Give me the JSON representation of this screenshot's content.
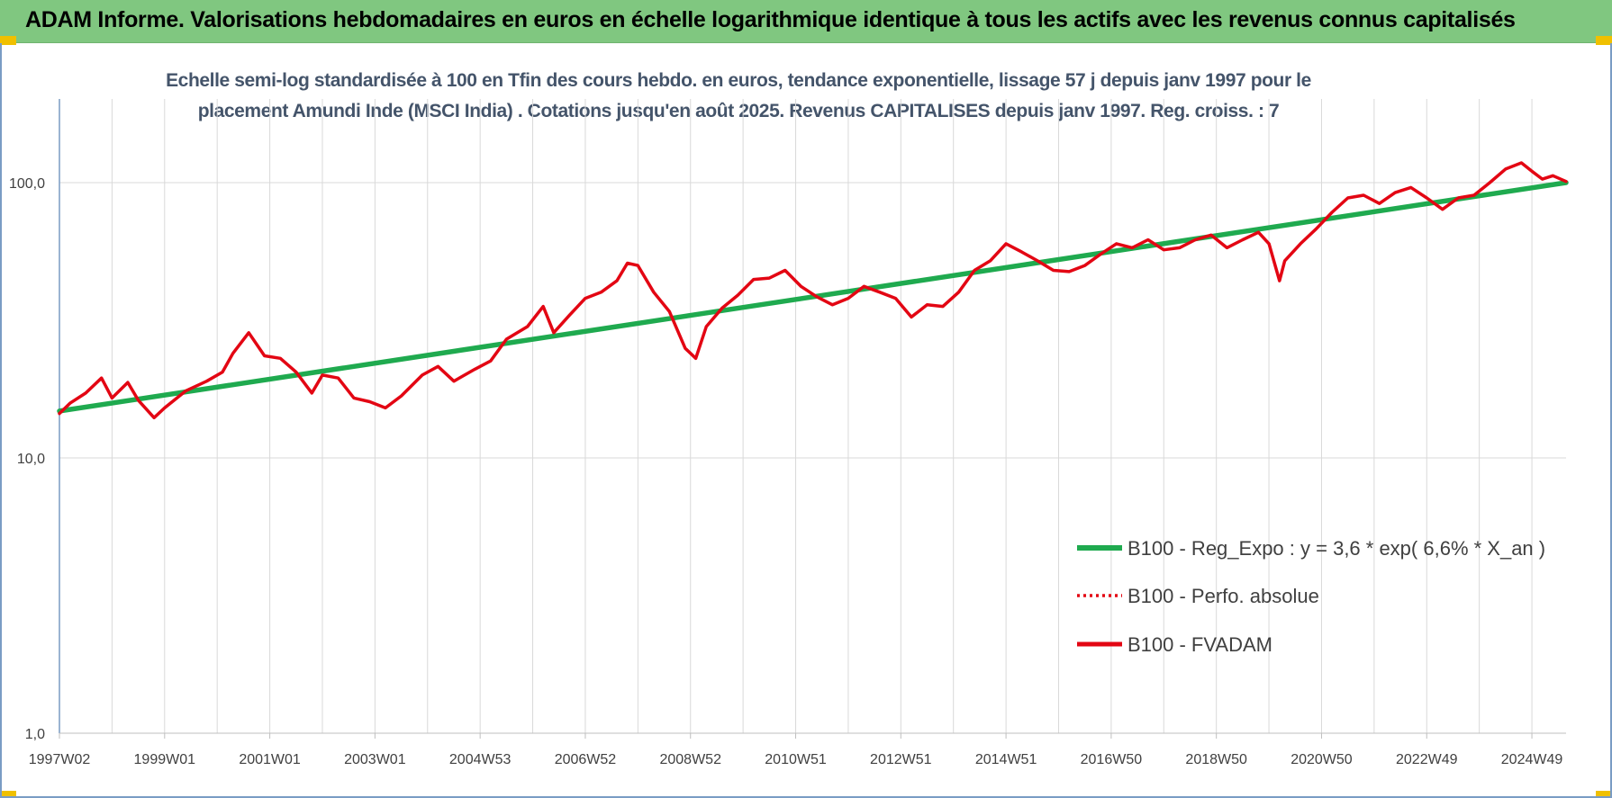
{
  "banner": {
    "title": "ADAM Informe. Valorisations hebdomadaires en euros en échelle logarithmique identique à tous les actifs avec les revenus connus capitalisés"
  },
  "colors": {
    "banner_bg": "#80c780",
    "regression": "#1faa4f",
    "fvadam": "#e30613",
    "perfo": "#e30613",
    "grid": "#d9d9d9",
    "axis": "#7a9cc4"
  },
  "chart_data": {
    "type": "line",
    "title_line1": "Echelle semi-log standardisée à 100 en Tfin des cours hebdo. en euros, tendance exponentielle, lissage 57 j depuis janv 1997 pour le",
    "title_line2": "placement Amundi Inde (MSCI India) . Cotations jusqu'en août 2025. Revenus CAPITALISES depuis janv 1997. Reg. croiss. : 7",
    "y_scale": "log",
    "ylim": [
      1,
      200
    ],
    "y_ticks": [
      {
        "value": 1,
        "label": "1,0"
      },
      {
        "value": 10,
        "label": "10,0"
      },
      {
        "value": 100,
        "label": "100,0"
      }
    ],
    "xlim": [
      1997.0,
      2025.65
    ],
    "x_ticks": [
      {
        "value": 1997.0,
        "label": "1997W02"
      },
      {
        "value": 1999.0,
        "label": "1999W01"
      },
      {
        "value": 2001.0,
        "label": "2001W01"
      },
      {
        "value": 2003.0,
        "label": "2003W01"
      },
      {
        "value": 2005.0,
        "label": "2004W53"
      },
      {
        "value": 2007.0,
        "label": "2006W52"
      },
      {
        "value": 2009.0,
        "label": "2008W52"
      },
      {
        "value": 2011.0,
        "label": "2010W51"
      },
      {
        "value": 2013.0,
        "label": "2012W51"
      },
      {
        "value": 2015.0,
        "label": "2014W51"
      },
      {
        "value": 2017.0,
        "label": "2016W50"
      },
      {
        "value": 2019.0,
        "label": "2018W50"
      },
      {
        "value": 2021.0,
        "label": "2020W50"
      },
      {
        "value": 2023.0,
        "label": "2022W49"
      },
      {
        "value": 2025.0,
        "label": "2024W49"
      }
    ],
    "grid": true,
    "legend_position": "bottom-right",
    "series": [
      {
        "name": "B100 - Reg_Expo : y = 3,6 * exp( 6,6% *  X_an )",
        "style": "solid-thick",
        "color": "#1faa4f",
        "x": [
          1997.0,
          2025.65
        ],
        "values": [
          14.8,
          100.0
        ]
      },
      {
        "name": "B100 - Perfo. absolue",
        "style": "dotted",
        "color": "#e30613",
        "x": [],
        "values": []
      },
      {
        "name": "B100 - FVADAM",
        "style": "solid",
        "color": "#e30613",
        "x": [
          1997.0,
          1997.2,
          1997.5,
          1997.8,
          1998.0,
          1998.3,
          1998.5,
          1998.8,
          1999.0,
          1999.4,
          1999.8,
          2000.1,
          2000.3,
          2000.6,
          2000.9,
          2001.2,
          2001.5,
          2001.8,
          2002.0,
          2002.3,
          2002.6,
          2002.9,
          2003.2,
          2003.5,
          2003.9,
          2004.2,
          2004.5,
          2004.9,
          2005.2,
          2005.5,
          2005.9,
          2006.2,
          2006.4,
          2006.7,
          2007.0,
          2007.3,
          2007.6,
          2007.8,
          2008.0,
          2008.3,
          2008.6,
          2008.9,
          2009.1,
          2009.3,
          2009.6,
          2009.9,
          2010.2,
          2010.5,
          2010.8,
          2011.1,
          2011.4,
          2011.7,
          2012.0,
          2012.3,
          2012.6,
          2012.9,
          2013.2,
          2013.5,
          2013.8,
          2014.1,
          2014.4,
          2014.7,
          2015.0,
          2015.3,
          2015.6,
          2015.9,
          2016.2,
          2016.5,
          2016.8,
          2017.1,
          2017.4,
          2017.7,
          2018.0,
          2018.3,
          2018.6,
          2018.9,
          2019.2,
          2019.5,
          2019.8,
          2020.0,
          2020.2,
          2020.3,
          2020.6,
          2020.9,
          2021.2,
          2021.5,
          2021.8,
          2022.1,
          2022.4,
          2022.7,
          2023.0,
          2023.3,
          2023.6,
          2023.9,
          2024.2,
          2024.5,
          2024.8,
          2025.0,
          2025.2,
          2025.4,
          2025.65
        ],
        "values": [
          14.5,
          15.8,
          17.2,
          19.5,
          16.5,
          18.8,
          16.2,
          14.0,
          15.2,
          17.5,
          19.0,
          20.5,
          24.0,
          28.5,
          23.5,
          23.0,
          20.5,
          17.2,
          20.0,
          19.5,
          16.5,
          16.0,
          15.2,
          16.8,
          20.0,
          21.5,
          19.0,
          21.0,
          22.5,
          27.0,
          30.0,
          35.5,
          28.5,
          33.0,
          38.0,
          40.0,
          44.0,
          51.0,
          50.0,
          40.0,
          34.0,
          25.0,
          23.0,
          30.0,
          35.0,
          39.0,
          44.5,
          45.0,
          48.0,
          42.0,
          38.5,
          36.0,
          38.0,
          42.0,
          40.0,
          38.0,
          32.5,
          36.0,
          35.5,
          40.0,
          48.0,
          52.0,
          60.0,
          56.0,
          52.0,
          48.0,
          47.5,
          50.0,
          55.0,
          60.0,
          58.0,
          62.0,
          57.0,
          58.0,
          62.0,
          64.5,
          58.0,
          62.0,
          66.0,
          60.0,
          44.0,
          52.0,
          60.0,
          68.0,
          78.0,
          88.0,
          90.0,
          84.0,
          92.0,
          96.0,
          88.0,
          80.0,
          88.0,
          90.0,
          100.0,
          112.0,
          118.0,
          110.0,
          103.0,
          106.0,
          101.0
        ]
      }
    ]
  }
}
